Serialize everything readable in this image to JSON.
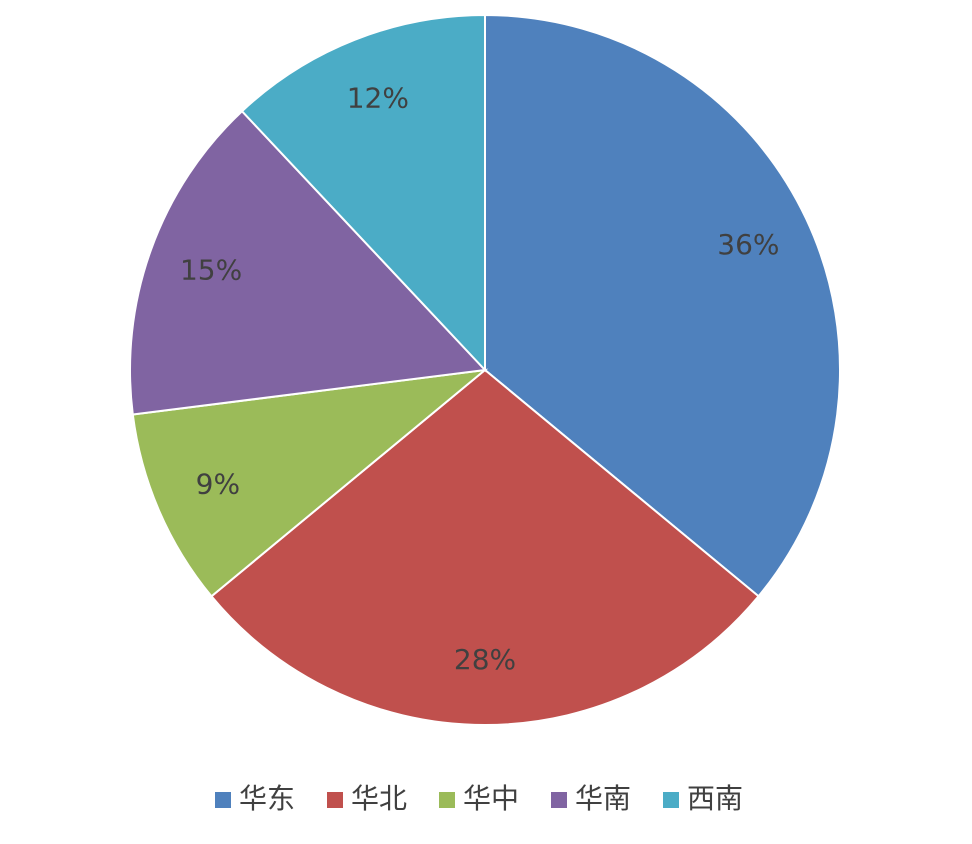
{
  "chart_data": {
    "type": "pie",
    "categories": [
      "华东",
      "华北",
      "华中",
      "华南",
      "西南"
    ],
    "values": [
      36,
      28,
      9,
      15,
      12
    ],
    "value_labels": [
      "36%",
      "28%",
      "9%",
      "15%",
      "12%"
    ],
    "colors": [
      "#4f81bd",
      "#c0504d",
      "#9bbb59",
      "#8064a2",
      "#4bacc6"
    ],
    "legend": "bottom"
  }
}
